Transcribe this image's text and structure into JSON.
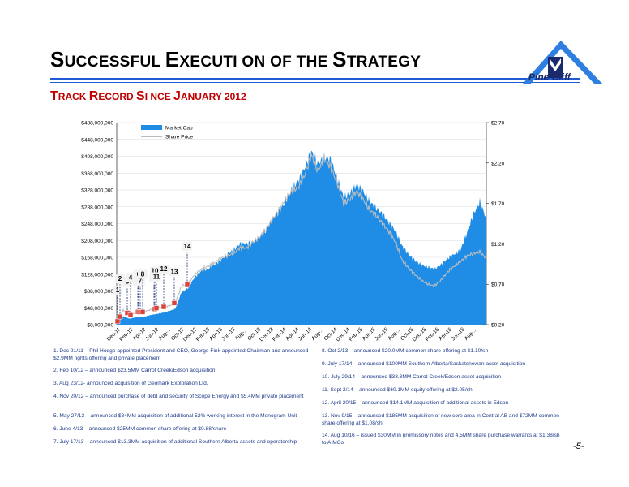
{
  "header": {
    "title_parts": [
      {
        "cap": "S",
        "rest": "UCCESSFUL "
      },
      {
        "cap": "E",
        "rest": "XECUTI ON OF THE "
      },
      {
        "cap": "S",
        "rest": "TRATEGY"
      }
    ],
    "subtitle_parts": [
      {
        "cap": "T",
        "rest": "RACK "
      },
      {
        "cap": "R",
        "rest": "ECORD "
      },
      {
        "cap": "S",
        "rest": "I NCE "
      },
      {
        "cap": "J",
        "rest": "ANUARY 2012"
      }
    ],
    "logo_text": "Pine Cliff",
    "colors": {
      "title_rule": "#1f5bd6",
      "subtitle": "#c00000",
      "logo_roof": "#2f7fe0"
    }
  },
  "chart_data": {
    "type": "area",
    "left_axis_ticks": [
      "$8,000,000",
      "$48,000,000",
      "$88,000,000",
      "$128,000,000",
      "$168,000,000",
      "$208,000,000",
      "$248,000,000",
      "$288,000,000",
      "$328,000,000",
      "$368,000,000",
      "$408,000,000",
      "$448,000,000",
      "$488,000,000"
    ],
    "right_axis_ticks": [
      "$0.20",
      "$0.70",
      "$1.20",
      "$1.70",
      "$2.20",
      "$2.70"
    ],
    "ylim_left": [
      8000000,
      488000000
    ],
    "ylim_right": [
      0.2,
      2.7
    ],
    "x_labels": [
      "Dec-11",
      "Feb-12",
      "Apr-12",
      "Jun-12",
      "Aug-...",
      "Oct-12",
      "Dec-12",
      "Feb-13",
      "Apr-13",
      "Jun-13",
      "Aug-...",
      "Oct-13",
      "Dec-13",
      "Feb-14",
      "Apr-14",
      "Jun-14",
      "Aug-...",
      "Oct-14",
      "Dec-14",
      "Feb-15",
      "Apr-15",
      "Jun-15",
      "Aug-...",
      "Oct-15",
      "Dec-15",
      "Feb-16",
      "Apr-16",
      "Jun-16",
      "Aug-..."
    ],
    "legend": [
      {
        "name": "Market Cap",
        "color": "#1f8de6"
      },
      {
        "name": "Share Price",
        "color": "#bdbdbd"
      }
    ],
    "legend_placement": "top-left",
    "market_cap": [
      10000000,
      28000000,
      22000000,
      26000000,
      26000000,
      30000000,
      33000000,
      36000000,
      40000000,
      45000000,
      85000000,
      95000000,
      120000000,
      135000000,
      140000000,
      150000000,
      160000000,
      175000000,
      185000000,
      200000000,
      200000000,
      205000000,
      215000000,
      230000000,
      260000000,
      275000000,
      300000000,
      330000000,
      350000000,
      380000000,
      420000000,
      390000000,
      405000000,
      400000000,
      355000000,
      310000000,
      320000000,
      340000000,
      325000000,
      300000000,
      285000000,
      270000000,
      250000000,
      230000000,
      195000000,
      175000000,
      160000000,
      150000000,
      145000000,
      140000000,
      150000000,
      165000000,
      175000000,
      185000000,
      225000000,
      270000000,
      300000000,
      260000000
    ],
    "share_price": [
      0.22,
      0.38,
      0.32,
      0.35,
      0.36,
      0.38,
      0.4,
      0.42,
      0.43,
      0.46,
      0.68,
      0.7,
      0.82,
      0.88,
      0.92,
      0.96,
      1.02,
      1.05,
      1.08,
      1.15,
      1.15,
      1.22,
      1.28,
      1.38,
      1.5,
      1.62,
      1.75,
      1.85,
      1.9,
      2.05,
      2.3,
      2.1,
      2.25,
      2.15,
      1.95,
      1.7,
      1.75,
      1.85,
      1.75,
      1.62,
      1.55,
      1.45,
      1.35,
      1.22,
      1.0,
      0.9,
      0.82,
      0.75,
      0.7,
      0.68,
      0.75,
      0.85,
      0.92,
      0.98,
      1.05,
      1.08,
      1.1,
      1.02
    ],
    "events": [
      {
        "label": "1",
        "idx": 1,
        "date": "Dec 21/11"
      },
      {
        "label": "2",
        "idx": 4,
        "date": "Feb 10/12"
      },
      {
        "label": "3",
        "idx": 13,
        "date": "Aug 23/12"
      },
      {
        "label": "4",
        "idx": 17,
        "date": "Nov 20/12"
      },
      {
        "label": "5",
        "idx": 26,
        "date": "May 27/13"
      },
      {
        "label": "6",
        "idx": 27,
        "date": "June 4/13"
      },
      {
        "label": "7",
        "idx": 29,
        "date": "July 17/13"
      },
      {
        "label": "8",
        "idx": 32,
        "date": "Oct 2/13"
      },
      {
        "label": "9",
        "idx": 46,
        "date": "July 17/14"
      },
      {
        "label": "10",
        "idx": 47,
        "date": "July 29/14"
      },
      {
        "label": "11",
        "idx": 49,
        "date": "Sept 2/14"
      },
      {
        "label": "12",
        "idx": 58,
        "date": "April 20/15"
      },
      {
        "label": "13",
        "idx": 71,
        "date": "Nov 9/15"
      },
      {
        "label": "14",
        "idx": 87,
        "date": "Aug 10/16"
      }
    ]
  },
  "notes_left": [
    "1. Dec 21/11 – Phil Hodge appointed President and CEO, George Fink appointed Chairman and announced $2.9MM rights offering and private placement",
    "2. Feb 10/12 – announced $23.5MM Carrot Creek/Edson acquisition",
    "3. Aug 23/12- announced acquisition of Geomark Exploration Ltd.",
    "4. Nov 20/12 – announced purchase of debt and security of Scope Energy and $5.4MM private placement",
    "5. May 27/13 – announced $34MM acquisition of additional 52% working interest in the Monogram Unit",
    "6. June 4/13 – announced $25MM common share offering at $0.88/share",
    "7. July 17/13 – announced $13.3MM acquisition of additional Southern Alberta assets and operatorship"
  ],
  "notes_right": [
    "8. Oct 2/13 – announced $20.0MM common share offering at $1.10/sh",
    "9. July 17/14 – announced $100MM Southern Alberta/Saskatchewan asset acquisition",
    "10. July 29/14 – announced $33.3MM Carrot Creek/Edson asset acquisition",
    "11. Sept 2/14 – announced $60.1MM equity offering at $2.05/sh",
    "12. April 20/15 – announced $14.1MM acquisition of additional assets in Edson",
    "13. Nov 9/15 – announced $185MM acquisition of new core area in Central AB and $72MM common share offering at $1.08/sh",
    "14. Aug 10/16 – issued $30MM in promissory notes and 4.5MM share purchase warrants at $1.38/sh to AIMCo"
  ],
  "page_number": "-5-"
}
